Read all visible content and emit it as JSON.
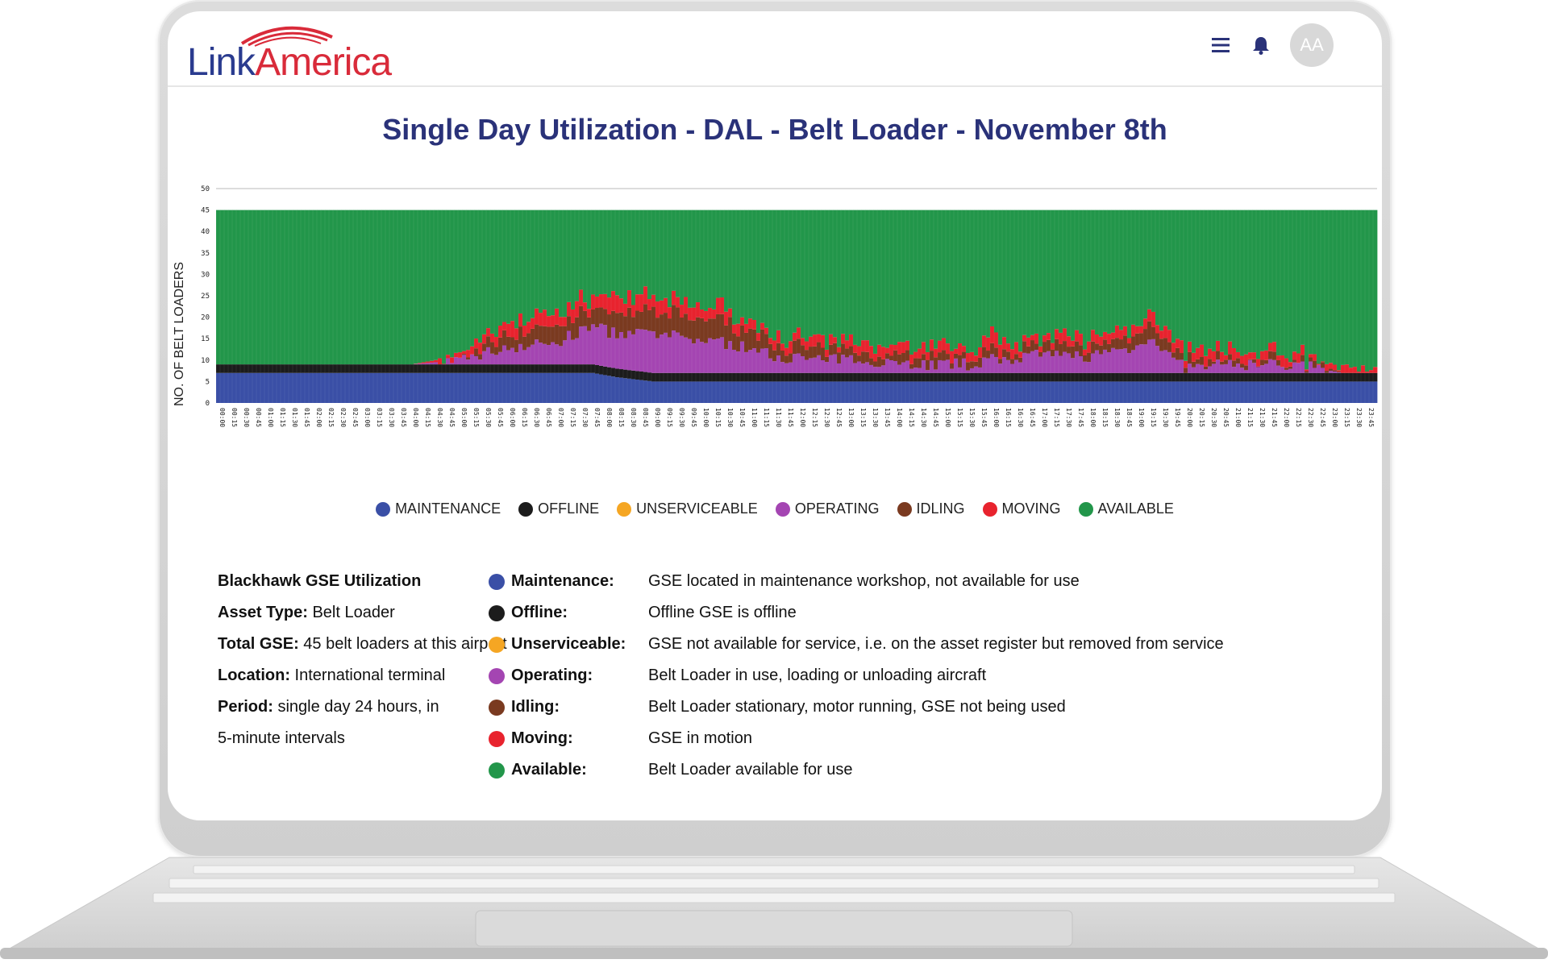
{
  "header": {
    "logo_part1": "Link",
    "logo_part2": "America",
    "avatar_initials": "AA",
    "menu_icon": "hamburger-menu-icon",
    "notification_icon": "bell-icon"
  },
  "title": "Single Day Utilization - DAL - Belt Loader - November 8th",
  "colors": {
    "maintenance": "#3a4fa6",
    "offline": "#1c1c1c",
    "unserviceable": "#f5a623",
    "operating": "#a445b2",
    "idling": "#7a3a20",
    "moving": "#e8232e",
    "available": "#22964a"
  },
  "legend": [
    {
      "key": "maintenance",
      "label": "MAINTENANCE"
    },
    {
      "key": "offline",
      "label": "OFFLINE"
    },
    {
      "key": "unserviceable",
      "label": "UNSERVICEABLE"
    },
    {
      "key": "operating",
      "label": "OPERATING"
    },
    {
      "key": "idling",
      "label": "IDLING"
    },
    {
      "key": "moving",
      "label": "MOVING"
    },
    {
      "key": "available",
      "label": "AVAILABLE"
    }
  ],
  "info": {
    "heading": "Blackhawk GSE Utilization",
    "asset_type_label": "Asset Type:",
    "asset_type_value": " Belt Loader",
    "total_label": "Total GSE:",
    "total_value": " 45 belt loaders at this airport",
    "location_label": "Location:",
    "location_value": " International terminal",
    "period_label": "Period:",
    "period_value": " single day 24 hours, in",
    "period_value2": "5-minute intervals"
  },
  "definitions": [
    {
      "key": "maintenance",
      "term": "Maintenance:",
      "desc": "GSE located in maintenance workshop, not available for use"
    },
    {
      "key": "offline",
      "term": "Offline:",
      "desc": "Offline GSE is offline"
    },
    {
      "key": "unserviceable",
      "term": "Unserviceable:",
      "desc": "GSE not available for service, i.e. on the asset register but removed from service"
    },
    {
      "key": "operating",
      "term": "Operating:",
      "desc": "Belt Loader in use, loading or unloading aircraft"
    },
    {
      "key": "idling",
      "term": "Idling:",
      "desc": "Belt Loader stationary, motor running, GSE not being used"
    },
    {
      "key": "moving",
      "term": "Moving:",
      "desc": "GSE in motion"
    },
    {
      "key": "available",
      "term": "Available:",
      "desc": "Belt Loader available for use"
    }
  ],
  "chart_data": {
    "type": "bar",
    "stacked": true,
    "ylabel": "NO. OF BELT LOADERS",
    "ylim": [
      0,
      50
    ],
    "yticks": [
      0,
      5,
      10,
      15,
      20,
      25,
      30,
      35,
      40,
      45,
      50
    ],
    "total": 45,
    "x_tick_labels": [
      "00:00",
      "00:15",
      "00:30",
      "00:45",
      "01:00",
      "01:15",
      "01:30",
      "01:45",
      "02:00",
      "02:15",
      "02:30",
      "02:45",
      "03:00",
      "03:15",
      "03:30",
      "03:45",
      "04:00",
      "04:15",
      "04:30",
      "04:45",
      "05:00",
      "05:15",
      "05:30",
      "05:45",
      "06:00",
      "06:15",
      "06:30",
      "06:45",
      "07:00",
      "07:15",
      "07:30",
      "07:45",
      "08:00",
      "08:15",
      "08:30",
      "08:45",
      "09:00",
      "09:15",
      "09:30",
      "09:45",
      "10:00",
      "10:15",
      "10:30",
      "10:45",
      "11:00",
      "11:15",
      "11:30",
      "11:45",
      "12:00",
      "12:15",
      "12:30",
      "12:45",
      "13:00",
      "13:15",
      "13:30",
      "13:45",
      "14:00",
      "14:15",
      "14:30",
      "14:45",
      "15:00",
      "15:15",
      "15:30",
      "15:45",
      "16:00",
      "16:15",
      "16:30",
      "16:45",
      "17:00",
      "17:15",
      "17:30",
      "17:45",
      "18:00",
      "18:15",
      "18:30",
      "18:45",
      "19:00",
      "19:15",
      "19:30",
      "19:45",
      "20:00",
      "20:15",
      "20:30",
      "20:45",
      "21:00",
      "21:15",
      "21:30",
      "21:45",
      "22:00",
      "22:15",
      "22:30",
      "22:45",
      "23:00",
      "23:15",
      "23:30",
      "23:45"
    ],
    "legend_position": "bottom",
    "series_keyframes": {
      "time": [
        "00:00",
        "04:00",
        "05:00",
        "06:00",
        "07:00",
        "07:45",
        "08:15",
        "09:00",
        "10:30",
        "11:30",
        "12:30",
        "13:30",
        "14:30",
        "15:30",
        "16:00",
        "17:00",
        "18:00",
        "19:00",
        "19:15",
        "19:45",
        "20:00",
        "21:00",
        "22:00",
        "22:45",
        "23:15",
        "23:45"
      ],
      "maintenance": [
        7,
        7,
        7,
        7,
        7,
        7,
        6,
        5,
        5,
        5,
        5,
        5,
        5,
        5,
        5,
        5,
        5,
        5,
        5,
        5,
        5,
        5,
        5,
        5,
        5,
        5
      ],
      "offline": [
        2,
        2,
        2,
        2,
        2,
        2,
        2,
        2,
        2,
        2,
        2,
        2,
        2,
        2,
        2,
        2,
        2,
        2,
        2,
        2,
        2,
        2,
        2,
        2,
        2,
        2
      ],
      "unserviceable": [
        0,
        0,
        0,
        0,
        0,
        0,
        0,
        0,
        0,
        0,
        0,
        0,
        0,
        0,
        0,
        0,
        0,
        0,
        0,
        0,
        0,
        0,
        0,
        0,
        0,
        0
      ],
      "operating": [
        0,
        0,
        1,
        4,
        5,
        9,
        8,
        9,
        7,
        4,
        3,
        3,
        2,
        2,
        3,
        4,
        4,
        6,
        9,
        3,
        1,
        2,
        2,
        1,
        0,
        0
      ],
      "idling": [
        0,
        0,
        0,
        3,
        4,
        4,
        5,
        5,
        5,
        3,
        2,
        2,
        2,
        2,
        2,
        2,
        2,
        3,
        4,
        2,
        2,
        1,
        1,
        1,
        0,
        0
      ],
      "moving": [
        0,
        0,
        1,
        3,
        3,
        3,
        4,
        3,
        3,
        2,
        2,
        2,
        2,
        2,
        3,
        2,
        2,
        2,
        3,
        2,
        2,
        2,
        2,
        1,
        1,
        1
      ]
    }
  }
}
